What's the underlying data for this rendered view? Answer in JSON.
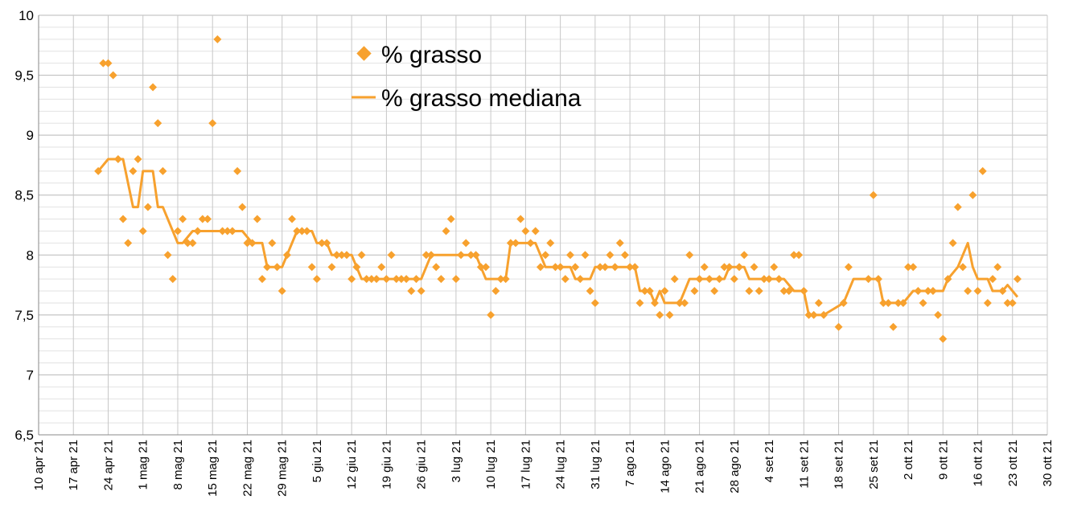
{
  "chart_data": {
    "type": "scatter",
    "x_axis": {
      "type": "date",
      "min": "2021-04-10",
      "max": "2021-10-30",
      "major_step_days": 7,
      "tick_labels": [
        "10 apr 21",
        "17 apr 21",
        "24 apr 21",
        "1 mag 21",
        "8 mag 21",
        "15 mag 21",
        "22 mag 21",
        "29 mag 21",
        "5 giu 21",
        "12 giu 21",
        "19 giu 21",
        "26 giu 21",
        "3 lug 21",
        "10 lug 21",
        "17 lug 21",
        "24 lug 21",
        "31 lug 21",
        "7 ago 21",
        "14 ago 21",
        "21 ago 21",
        "28 ago 21",
        "4 set 21",
        "11 set 21",
        "18 set 21",
        "25 set 21",
        "2 ott 21",
        "9 ott 21",
        "16 ott 21",
        "23 ott 21",
        "30 ott 21"
      ]
    },
    "y_axis": {
      "min": 6.5,
      "max": 10,
      "major_step": 0.5,
      "tick_labels": [
        "6,5",
        "7",
        "7,5",
        "8",
        "8,5",
        "9",
        "9,5",
        "10"
      ]
    },
    "grid": true,
    "legend_position": "top-center",
    "series": [
      {
        "name": "% grasso",
        "style": "markers",
        "marker": "diamond",
        "color": "#f7a12e",
        "points": [
          [
            "2021-04-22",
            8.7
          ],
          [
            "2021-04-23",
            9.6
          ],
          [
            "2021-04-24",
            9.6
          ],
          [
            "2021-04-25",
            9.5
          ],
          [
            "2021-04-26",
            8.8
          ],
          [
            "2021-04-27",
            8.3
          ],
          [
            "2021-04-28",
            8.1
          ],
          [
            "2021-04-29",
            8.7
          ],
          [
            "2021-04-30",
            8.8
          ],
          [
            "2021-05-01",
            8.2
          ],
          [
            "2021-05-02",
            8.4
          ],
          [
            "2021-05-03",
            9.4
          ],
          [
            "2021-05-04",
            9.1
          ],
          [
            "2021-05-05",
            8.7
          ],
          [
            "2021-05-06",
            8.0
          ],
          [
            "2021-05-07",
            7.8
          ],
          [
            "2021-05-08",
            8.2
          ],
          [
            "2021-05-09",
            8.3
          ],
          [
            "2021-05-10",
            8.1
          ],
          [
            "2021-05-11",
            8.1
          ],
          [
            "2021-05-12",
            8.2
          ],
          [
            "2021-05-13",
            8.3
          ],
          [
            "2021-05-14",
            8.3
          ],
          [
            "2021-05-15",
            9.1
          ],
          [
            "2021-05-16",
            9.8
          ],
          [
            "2021-05-17",
            8.2
          ],
          [
            "2021-05-18",
            8.2
          ],
          [
            "2021-05-19",
            8.2
          ],
          [
            "2021-05-20",
            8.7
          ],
          [
            "2021-05-21",
            8.4
          ],
          [
            "2021-05-22",
            8.1
          ],
          [
            "2021-05-23",
            8.1
          ],
          [
            "2021-05-24",
            8.3
          ],
          [
            "2021-05-25",
            7.8
          ],
          [
            "2021-05-26",
            7.9
          ],
          [
            "2021-05-27",
            8.1
          ],
          [
            "2021-05-28",
            7.9
          ],
          [
            "2021-05-29",
            7.7
          ],
          [
            "2021-05-30",
            8.0
          ],
          [
            "2021-05-31",
            8.3
          ],
          [
            "2021-06-01",
            8.2
          ],
          [
            "2021-06-02",
            8.2
          ],
          [
            "2021-06-03",
            8.2
          ],
          [
            "2021-06-04",
            7.9
          ],
          [
            "2021-06-05",
            7.8
          ],
          [
            "2021-06-06",
            8.1
          ],
          [
            "2021-06-07",
            8.1
          ],
          [
            "2021-06-08",
            7.9
          ],
          [
            "2021-06-09",
            8.0
          ],
          [
            "2021-06-10",
            8.0
          ],
          [
            "2021-06-11",
            8.0
          ],
          [
            "2021-06-12",
            7.8
          ],
          [
            "2021-06-13",
            7.9
          ],
          [
            "2021-06-14",
            8.0
          ],
          [
            "2021-06-15",
            7.8
          ],
          [
            "2021-06-16",
            7.8
          ],
          [
            "2021-06-17",
            7.8
          ],
          [
            "2021-06-18",
            7.9
          ],
          [
            "2021-06-19",
            7.8
          ],
          [
            "2021-06-20",
            8.0
          ],
          [
            "2021-06-21",
            7.8
          ],
          [
            "2021-06-22",
            7.8
          ],
          [
            "2021-06-23",
            7.8
          ],
          [
            "2021-06-24",
            7.7
          ],
          [
            "2021-06-25",
            7.8
          ],
          [
            "2021-06-26",
            7.7
          ],
          [
            "2021-06-27",
            8.0
          ],
          [
            "2021-06-28",
            8.0
          ],
          [
            "2021-06-29",
            7.9
          ],
          [
            "2021-06-30",
            7.8
          ],
          [
            "2021-07-01",
            8.2
          ],
          [
            "2021-07-02",
            8.3
          ],
          [
            "2021-07-03",
            7.8
          ],
          [
            "2021-07-04",
            8.0
          ],
          [
            "2021-07-05",
            8.1
          ],
          [
            "2021-07-06",
            8.0
          ],
          [
            "2021-07-07",
            8.0
          ],
          [
            "2021-07-08",
            7.9
          ],
          [
            "2021-07-09",
            7.9
          ],
          [
            "2021-07-10",
            7.5
          ],
          [
            "2021-07-11",
            7.7
          ],
          [
            "2021-07-12",
            7.8
          ],
          [
            "2021-07-13",
            7.8
          ],
          [
            "2021-07-14",
            8.1
          ],
          [
            "2021-07-15",
            8.1
          ],
          [
            "2021-07-16",
            8.3
          ],
          [
            "2021-07-17",
            8.2
          ],
          [
            "2021-07-18",
            8.1
          ],
          [
            "2021-07-19",
            8.2
          ],
          [
            "2021-07-20",
            7.9
          ],
          [
            "2021-07-21",
            8.0
          ],
          [
            "2021-07-22",
            8.1
          ],
          [
            "2021-07-23",
            7.9
          ],
          [
            "2021-07-24",
            7.9
          ],
          [
            "2021-07-25",
            7.8
          ],
          [
            "2021-07-26",
            8.0
          ],
          [
            "2021-07-27",
            7.9
          ],
          [
            "2021-07-28",
            7.8
          ],
          [
            "2021-07-29",
            8.0
          ],
          [
            "2021-07-30",
            7.7
          ],
          [
            "2021-07-31",
            7.6
          ],
          [
            "2021-08-01",
            7.9
          ],
          [
            "2021-08-02",
            7.9
          ],
          [
            "2021-08-03",
            8.0
          ],
          [
            "2021-08-04",
            7.9
          ],
          [
            "2021-08-05",
            8.1
          ],
          [
            "2021-08-06",
            8.0
          ],
          [
            "2021-08-07",
            7.9
          ],
          [
            "2021-08-08",
            7.9
          ],
          [
            "2021-08-09",
            7.6
          ],
          [
            "2021-08-10",
            7.7
          ],
          [
            "2021-08-11",
            7.7
          ],
          [
            "2021-08-12",
            7.6
          ],
          [
            "2021-08-13",
            7.5
          ],
          [
            "2021-08-14",
            7.7
          ],
          [
            "2021-08-15",
            7.5
          ],
          [
            "2021-08-16",
            7.8
          ],
          [
            "2021-08-17",
            7.6
          ],
          [
            "2021-08-18",
            7.6
          ],
          [
            "2021-08-19",
            8.0
          ],
          [
            "2021-08-20",
            7.7
          ],
          [
            "2021-08-21",
            7.8
          ],
          [
            "2021-08-22",
            7.9
          ],
          [
            "2021-08-23",
            7.8
          ],
          [
            "2021-08-24",
            7.7
          ],
          [
            "2021-08-25",
            7.8
          ],
          [
            "2021-08-26",
            7.9
          ],
          [
            "2021-08-27",
            7.9
          ],
          [
            "2021-08-28",
            7.8
          ],
          [
            "2021-08-29",
            7.9
          ],
          [
            "2021-08-30",
            8.0
          ],
          [
            "2021-08-31",
            7.7
          ],
          [
            "2021-09-01",
            7.9
          ],
          [
            "2021-09-02",
            7.7
          ],
          [
            "2021-09-03",
            7.8
          ],
          [
            "2021-09-04",
            7.8
          ],
          [
            "2021-09-05",
            7.9
          ],
          [
            "2021-09-06",
            7.8
          ],
          [
            "2021-09-07",
            7.7
          ],
          [
            "2021-09-08",
            7.7
          ],
          [
            "2021-09-09",
            8.0
          ],
          [
            "2021-09-10",
            8.0
          ],
          [
            "2021-09-11",
            7.7
          ],
          [
            "2021-09-12",
            7.5
          ],
          [
            "2021-09-13",
            7.5
          ],
          [
            "2021-09-14",
            7.6
          ],
          [
            "2021-09-15",
            7.5
          ],
          [
            "2021-09-18",
            7.4
          ],
          [
            "2021-09-19",
            7.6
          ],
          [
            "2021-09-20",
            7.9
          ],
          [
            "2021-09-24",
            7.8
          ],
          [
            "2021-09-25",
            8.5
          ],
          [
            "2021-09-26",
            7.8
          ],
          [
            "2021-09-27",
            7.6
          ],
          [
            "2021-09-28",
            7.6
          ],
          [
            "2021-09-29",
            7.4
          ],
          [
            "2021-09-30",
            7.6
          ],
          [
            "2021-10-01",
            7.6
          ],
          [
            "2021-10-02",
            7.9
          ],
          [
            "2021-10-03",
            7.9
          ],
          [
            "2021-10-04",
            7.7
          ],
          [
            "2021-10-05",
            7.6
          ],
          [
            "2021-10-06",
            7.7
          ],
          [
            "2021-10-07",
            7.7
          ],
          [
            "2021-10-08",
            7.5
          ],
          [
            "2021-10-09",
            7.3
          ],
          [
            "2021-10-10",
            7.8
          ],
          [
            "2021-10-11",
            8.1
          ],
          [
            "2021-10-12",
            8.4
          ],
          [
            "2021-10-13",
            7.9
          ],
          [
            "2021-10-14",
            7.7
          ],
          [
            "2021-10-15",
            8.5
          ],
          [
            "2021-10-16",
            7.7
          ],
          [
            "2021-10-17",
            8.7
          ],
          [
            "2021-10-18",
            7.6
          ],
          [
            "2021-10-19",
            7.8
          ],
          [
            "2021-10-20",
            7.9
          ],
          [
            "2021-10-21",
            7.7
          ],
          [
            "2021-10-22",
            7.6
          ],
          [
            "2021-10-23",
            7.6
          ],
          [
            "2021-10-24",
            7.8
          ]
        ]
      },
      {
        "name": "% grasso mediana",
        "style": "line",
        "color": "#f7a12e",
        "points": [
          [
            "2021-04-22",
            8.7
          ],
          [
            "2021-04-24",
            8.8
          ],
          [
            "2021-04-26",
            8.8
          ],
          [
            "2021-04-27",
            8.8
          ],
          [
            "2021-04-29",
            8.4
          ],
          [
            "2021-04-30",
            8.4
          ],
          [
            "2021-05-01",
            8.7
          ],
          [
            "2021-05-03",
            8.7
          ],
          [
            "2021-05-04",
            8.4
          ],
          [
            "2021-05-05",
            8.4
          ],
          [
            "2021-05-08",
            8.1
          ],
          [
            "2021-05-09",
            8.1
          ],
          [
            "2021-05-11",
            8.2
          ],
          [
            "2021-05-19",
            8.2
          ],
          [
            "2021-05-21",
            8.2
          ],
          [
            "2021-05-23",
            8.1
          ],
          [
            "2021-05-25",
            8.1
          ],
          [
            "2021-05-26",
            7.9
          ],
          [
            "2021-05-29",
            7.9
          ],
          [
            "2021-06-01",
            8.2
          ],
          [
            "2021-06-04",
            8.2
          ],
          [
            "2021-06-05",
            8.1
          ],
          [
            "2021-06-07",
            8.1
          ],
          [
            "2021-06-08",
            8.0
          ],
          [
            "2021-06-12",
            8.0
          ],
          [
            "2021-06-13",
            7.9
          ],
          [
            "2021-06-14",
            7.8
          ],
          [
            "2021-06-26",
            7.8
          ],
          [
            "2021-06-28",
            8.0
          ],
          [
            "2021-07-07",
            8.0
          ],
          [
            "2021-07-09",
            7.8
          ],
          [
            "2021-07-13",
            7.8
          ],
          [
            "2021-07-14",
            8.1
          ],
          [
            "2021-07-19",
            8.1
          ],
          [
            "2021-07-21",
            7.9
          ],
          [
            "2021-07-26",
            7.9
          ],
          [
            "2021-07-27",
            7.8
          ],
          [
            "2021-07-30",
            7.8
          ],
          [
            "2021-07-31",
            7.9
          ],
          [
            "2021-08-08",
            7.9
          ],
          [
            "2021-08-09",
            7.7
          ],
          [
            "2021-08-11",
            7.7
          ],
          [
            "2021-08-12",
            7.6
          ],
          [
            "2021-08-13",
            7.7
          ],
          [
            "2021-08-14",
            7.6
          ],
          [
            "2021-08-17",
            7.6
          ],
          [
            "2021-08-18",
            7.7
          ],
          [
            "2021-08-19",
            7.8
          ],
          [
            "2021-08-26",
            7.8
          ],
          [
            "2021-08-27",
            7.9
          ],
          [
            "2021-08-30",
            7.9
          ],
          [
            "2021-08-31",
            7.8
          ],
          [
            "2021-09-06",
            7.8
          ],
          [
            "2021-09-07",
            7.8
          ],
          [
            "2021-09-09",
            7.7
          ],
          [
            "2021-09-11",
            7.7
          ],
          [
            "2021-09-12",
            7.5
          ],
          [
            "2021-09-15",
            7.5
          ],
          [
            "2021-09-19",
            7.6
          ],
          [
            "2021-09-21",
            7.8
          ],
          [
            "2021-09-26",
            7.8
          ],
          [
            "2021-09-27",
            7.6
          ],
          [
            "2021-10-01",
            7.6
          ],
          [
            "2021-10-03",
            7.7
          ],
          [
            "2021-10-09",
            7.7
          ],
          [
            "2021-10-10",
            7.8
          ],
          [
            "2021-10-12",
            7.9
          ],
          [
            "2021-10-14",
            8.1
          ],
          [
            "2021-10-15",
            7.9
          ],
          [
            "2021-10-16",
            7.8
          ],
          [
            "2021-10-18",
            7.8
          ],
          [
            "2021-10-19",
            7.7
          ],
          [
            "2021-10-21",
            7.7
          ],
          [
            "2021-10-22",
            7.75
          ],
          [
            "2021-10-24",
            7.65
          ]
        ]
      }
    ]
  }
}
